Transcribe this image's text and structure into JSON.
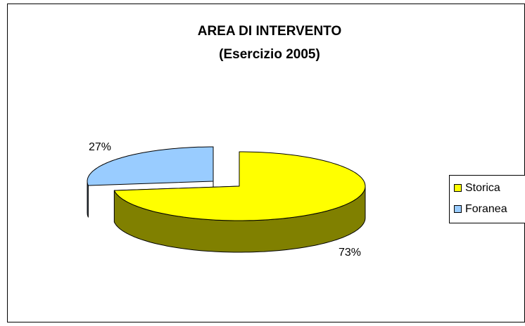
{
  "chart_data": {
    "type": "pie",
    "title": "AREA DI INTERVENTO",
    "subtitle": "(Esercizio 2005)",
    "categories": [
      "Storica",
      "Foranea"
    ],
    "values": [
      73,
      27
    ],
    "value_labels": [
      "73%",
      "27%"
    ],
    "colors": [
      "#ffff00",
      "#99ccff"
    ],
    "legend": "right"
  }
}
